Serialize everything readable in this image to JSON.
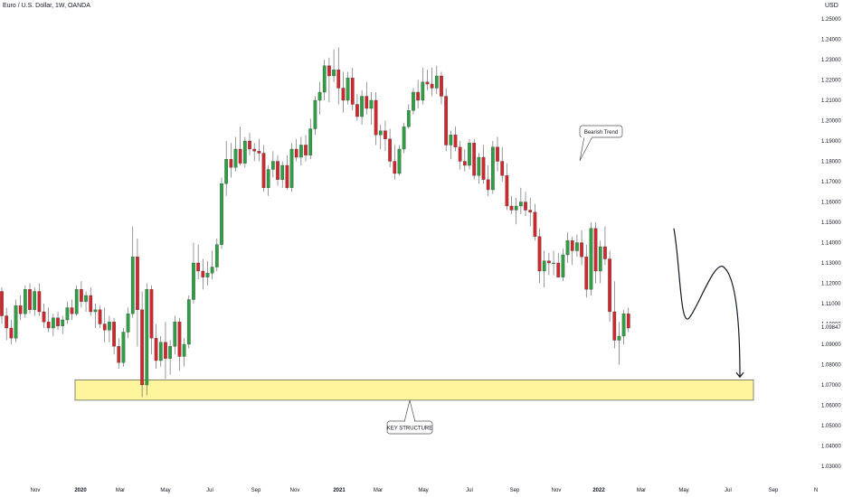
{
  "header": {
    "title": "Euro / U.S. Dollar, 1W, OANDA",
    "currency": "USD"
  },
  "colors": {
    "up": "#2ea043",
    "down": "#d1272d",
    "wick": "#555555",
    "zone_fill": "#fff59d",
    "zone_stroke": "#555555"
  },
  "chart_data": {
    "type": "candlestick",
    "instrument": "Euro / U.S. Dollar",
    "interval": "1W",
    "source": "OANDA",
    "y_axis": {
      "ticks": [
        "1.03000",
        "1.04000",
        "1.05000",
        "1.06000",
        "1.07000",
        "1.08000",
        "1.09000",
        "1.10000",
        "1.11000",
        "1.12000",
        "1.13000",
        "1.14000",
        "1.15000",
        "1.16000",
        "1.17000",
        "1.18000",
        "1.19000",
        "1.20000",
        "1.21000",
        "1.22000",
        "1.23000",
        "1.24000",
        "1.25000"
      ],
      "tick_values": [
        1.03,
        1.04,
        1.05,
        1.06,
        1.07,
        1.08,
        1.09,
        1.1,
        1.11,
        1.12,
        1.13,
        1.14,
        1.15,
        1.16,
        1.17,
        1.18,
        1.19,
        1.2,
        1.21,
        1.22,
        1.23,
        1.24,
        1.25
      ],
      "ylim": [
        1.025,
        1.26
      ],
      "last_price": "1.09847",
      "last_price_value": 1.09847
    },
    "x_axis": {
      "ticks": [
        "Nov",
        "2020",
        "Mar",
        "May",
        "Jul",
        "Sep",
        "Nov",
        "2021",
        "Mar",
        "May",
        "Jul",
        "Sep",
        "Nov",
        "2022",
        "Mar",
        "May",
        "Jul",
        "Sep",
        "N"
      ],
      "bold": [
        false,
        true,
        false,
        false,
        false,
        false,
        false,
        true,
        false,
        false,
        false,
        false,
        false,
        true,
        false,
        false,
        false,
        false,
        false
      ]
    },
    "candles": [
      [
        1.116,
        1.118,
        1.1,
        1.104
      ],
      [
        1.104,
        1.108,
        1.092,
        1.098
      ],
      [
        1.098,
        1.102,
        1.09,
        1.093
      ],
      [
        1.093,
        1.112,
        1.091,
        1.109
      ],
      [
        1.109,
        1.114,
        1.102,
        1.105
      ],
      [
        1.105,
        1.119,
        1.103,
        1.117
      ],
      [
        1.117,
        1.12,
        1.105,
        1.107
      ],
      [
        1.107,
        1.118,
        1.104,
        1.116
      ],
      [
        1.116,
        1.12,
        1.104,
        1.106
      ],
      [
        1.106,
        1.11,
        1.098,
        1.101
      ],
      [
        1.101,
        1.108,
        1.096,
        1.098
      ],
      [
        1.098,
        1.105,
        1.094,
        1.103
      ],
      [
        1.103,
        1.106,
        1.097,
        1.099
      ],
      [
        1.099,
        1.104,
        1.095,
        1.102
      ],
      [
        1.102,
        1.111,
        1.1,
        1.108
      ],
      [
        1.108,
        1.112,
        1.102,
        1.105
      ],
      [
        1.105,
        1.119,
        1.104,
        1.117
      ],
      [
        1.117,
        1.121,
        1.108,
        1.111
      ],
      [
        1.111,
        1.116,
        1.106,
        1.114
      ],
      [
        1.114,
        1.118,
        1.104,
        1.106
      ],
      [
        1.106,
        1.11,
        1.098,
        1.107
      ],
      [
        1.107,
        1.109,
        1.098,
        1.1
      ],
      [
        1.1,
        1.108,
        1.091,
        1.097
      ],
      [
        1.097,
        1.104,
        1.091,
        1.101
      ],
      [
        1.101,
        1.103,
        1.085,
        1.089
      ],
      [
        1.089,
        1.093,
        1.078,
        1.081
      ],
      [
        1.081,
        1.098,
        1.079,
        1.096
      ],
      [
        1.096,
        1.108,
        1.093,
        1.105
      ],
      [
        1.105,
        1.148,
        1.103,
        1.133
      ],
      [
        1.133,
        1.142,
        1.089,
        1.107
      ],
      [
        1.107,
        1.116,
        1.064,
        1.07
      ],
      [
        1.07,
        1.12,
        1.065,
        1.117
      ],
      [
        1.117,
        1.119,
        1.085,
        1.093
      ],
      [
        1.093,
        1.1,
        1.078,
        1.082
      ],
      [
        1.082,
        1.094,
        1.079,
        1.091
      ],
      [
        1.091,
        1.101,
        1.073,
        1.083
      ],
      [
        1.083,
        1.092,
        1.075,
        1.089
      ],
      [
        1.089,
        1.104,
        1.085,
        1.101
      ],
      [
        1.101,
        1.103,
        1.077,
        1.084
      ],
      [
        1.084,
        1.093,
        1.079,
        1.09
      ],
      [
        1.09,
        1.114,
        1.088,
        1.112
      ],
      [
        1.112,
        1.14,
        1.11,
        1.13
      ],
      [
        1.13,
        1.139,
        1.122,
        1.126
      ],
      [
        1.126,
        1.132,
        1.117,
        1.123
      ],
      [
        1.123,
        1.131,
        1.119,
        1.125
      ],
      [
        1.125,
        1.136,
        1.122,
        1.128
      ],
      [
        1.128,
        1.142,
        1.126,
        1.139
      ],
      [
        1.139,
        1.172,
        1.137,
        1.169
      ],
      [
        1.169,
        1.19,
        1.163,
        1.181
      ],
      [
        1.181,
        1.189,
        1.172,
        1.177
      ],
      [
        1.177,
        1.192,
        1.175,
        1.186
      ],
      [
        1.186,
        1.197,
        1.178,
        1.179
      ],
      [
        1.179,
        1.192,
        1.177,
        1.19
      ],
      [
        1.19,
        1.194,
        1.183,
        1.186
      ],
      [
        1.186,
        1.189,
        1.18,
        1.185
      ],
      [
        1.185,
        1.191,
        1.18,
        1.184
      ],
      [
        1.184,
        1.188,
        1.165,
        1.167
      ],
      [
        1.167,
        1.178,
        1.163,
        1.176
      ],
      [
        1.176,
        1.185,
        1.172,
        1.18
      ],
      [
        1.18,
        1.183,
        1.168,
        1.171
      ],
      [
        1.171,
        1.18,
        1.167,
        1.178
      ],
      [
        1.178,
        1.183,
        1.166,
        1.167
      ],
      [
        1.167,
        1.189,
        1.165,
        1.186
      ],
      [
        1.186,
        1.191,
        1.18,
        1.182
      ],
      [
        1.182,
        1.192,
        1.178,
        1.188
      ],
      [
        1.188,
        1.193,
        1.18,
        1.183
      ],
      [
        1.183,
        1.201,
        1.181,
        1.196
      ],
      [
        1.196,
        1.212,
        1.193,
        1.21
      ],
      [
        1.21,
        1.219,
        1.203,
        1.214
      ],
      [
        1.214,
        1.23,
        1.21,
        1.227
      ],
      [
        1.227,
        1.231,
        1.209,
        1.222
      ],
      [
        1.222,
        1.235,
        1.219,
        1.225
      ],
      [
        1.225,
        1.236,
        1.208,
        1.216
      ],
      [
        1.216,
        1.224,
        1.204,
        1.21
      ],
      [
        1.21,
        1.224,
        1.208,
        1.221
      ],
      [
        1.221,
        1.226,
        1.205,
        1.208
      ],
      [
        1.208,
        1.213,
        1.2,
        1.202
      ],
      [
        1.202,
        1.215,
        1.198,
        1.212
      ],
      [
        1.212,
        1.219,
        1.203,
        1.206
      ],
      [
        1.206,
        1.214,
        1.198,
        1.21
      ],
      [
        1.21,
        1.214,
        1.188,
        1.193
      ],
      [
        1.193,
        1.198,
        1.186,
        1.195
      ],
      [
        1.195,
        1.2,
        1.185,
        1.191
      ],
      [
        1.191,
        1.196,
        1.177,
        1.18
      ],
      [
        1.18,
        1.188,
        1.171,
        1.174
      ],
      [
        1.174,
        1.188,
        1.173,
        1.186
      ],
      [
        1.186,
        1.199,
        1.184,
        1.197
      ],
      [
        1.197,
        1.208,
        1.196,
        1.205
      ],
      [
        1.205,
        1.216,
        1.203,
        1.214
      ],
      [
        1.214,
        1.22,
        1.206,
        1.21
      ],
      [
        1.21,
        1.226,
        1.208,
        1.219
      ],
      [
        1.219,
        1.225,
        1.215,
        1.218
      ],
      [
        1.218,
        1.226,
        1.212,
        1.216
      ],
      [
        1.216,
        1.227,
        1.213,
        1.222
      ],
      [
        1.222,
        1.224,
        1.208,
        1.212
      ],
      [
        1.212,
        1.216,
        1.185,
        1.188
      ],
      [
        1.188,
        1.195,
        1.181,
        1.193
      ],
      [
        1.193,
        1.197,
        1.185,
        1.187
      ],
      [
        1.187,
        1.19,
        1.176,
        1.18
      ],
      [
        1.18,
        1.186,
        1.175,
        1.178
      ],
      [
        1.178,
        1.191,
        1.176,
        1.189
      ],
      [
        1.189,
        1.191,
        1.171,
        1.173
      ],
      [
        1.173,
        1.184,
        1.169,
        1.182
      ],
      [
        1.182,
        1.188,
        1.169,
        1.171
      ],
      [
        1.171,
        1.178,
        1.163,
        1.166
      ],
      [
        1.166,
        1.19,
        1.164,
        1.187
      ],
      [
        1.187,
        1.192,
        1.175,
        1.18
      ],
      [
        1.18,
        1.187,
        1.17,
        1.173
      ],
      [
        1.173,
        1.179,
        1.156,
        1.158
      ],
      [
        1.158,
        1.163,
        1.154,
        1.156
      ],
      [
        1.156,
        1.162,
        1.149,
        1.158
      ],
      [
        1.158,
        1.167,
        1.154,
        1.16
      ],
      [
        1.16,
        1.165,
        1.153,
        1.156
      ],
      [
        1.156,
        1.162,
        1.148,
        1.155
      ],
      [
        1.155,
        1.159,
        1.141,
        1.143
      ],
      [
        1.143,
        1.147,
        1.12,
        1.126
      ],
      [
        1.126,
        1.136,
        1.118,
        1.131
      ],
      [
        1.131,
        1.135,
        1.124,
        1.13
      ],
      [
        1.13,
        1.136,
        1.124,
        1.13
      ],
      [
        1.13,
        1.135,
        1.123,
        1.123
      ],
      [
        1.123,
        1.137,
        1.121,
        1.134
      ],
      [
        1.134,
        1.145,
        1.13,
        1.141
      ],
      [
        1.141,
        1.143,
        1.129,
        1.136
      ],
      [
        1.136,
        1.144,
        1.133,
        1.14
      ],
      [
        1.14,
        1.146,
        1.129,
        1.133
      ],
      [
        1.133,
        1.139,
        1.113,
        1.117
      ],
      [
        1.117,
        1.15,
        1.114,
        1.147
      ],
      [
        1.147,
        1.15,
        1.12,
        1.126
      ],
      [
        1.126,
        1.141,
        1.12,
        1.138
      ],
      [
        1.138,
        1.148,
        1.129,
        1.132
      ],
      [
        1.132,
        1.136,
        1.101,
        1.106
      ],
      [
        1.106,
        1.121,
        1.088,
        1.092
      ],
      [
        1.092,
        1.101,
        1.08,
        1.094
      ],
      [
        1.094,
        1.107,
        1.09,
        1.105
      ],
      [
        1.105,
        1.108,
        1.096,
        1.098
      ]
    ],
    "zone": {
      "label": "KEY STRUCTURE",
      "y_top": 1.0725,
      "y_bottom": 1.0625
    },
    "annotations": [
      {
        "text": "Bearish Trend"
      },
      {
        "text": "KEY STRUCTURE"
      }
    ],
    "projection": {
      "type": "curve-with-arrow",
      "points": [
        [
          1.147
        ],
        [
          1.103
        ],
        [
          1.128
        ],
        [
          1.073
        ]
      ]
    }
  }
}
